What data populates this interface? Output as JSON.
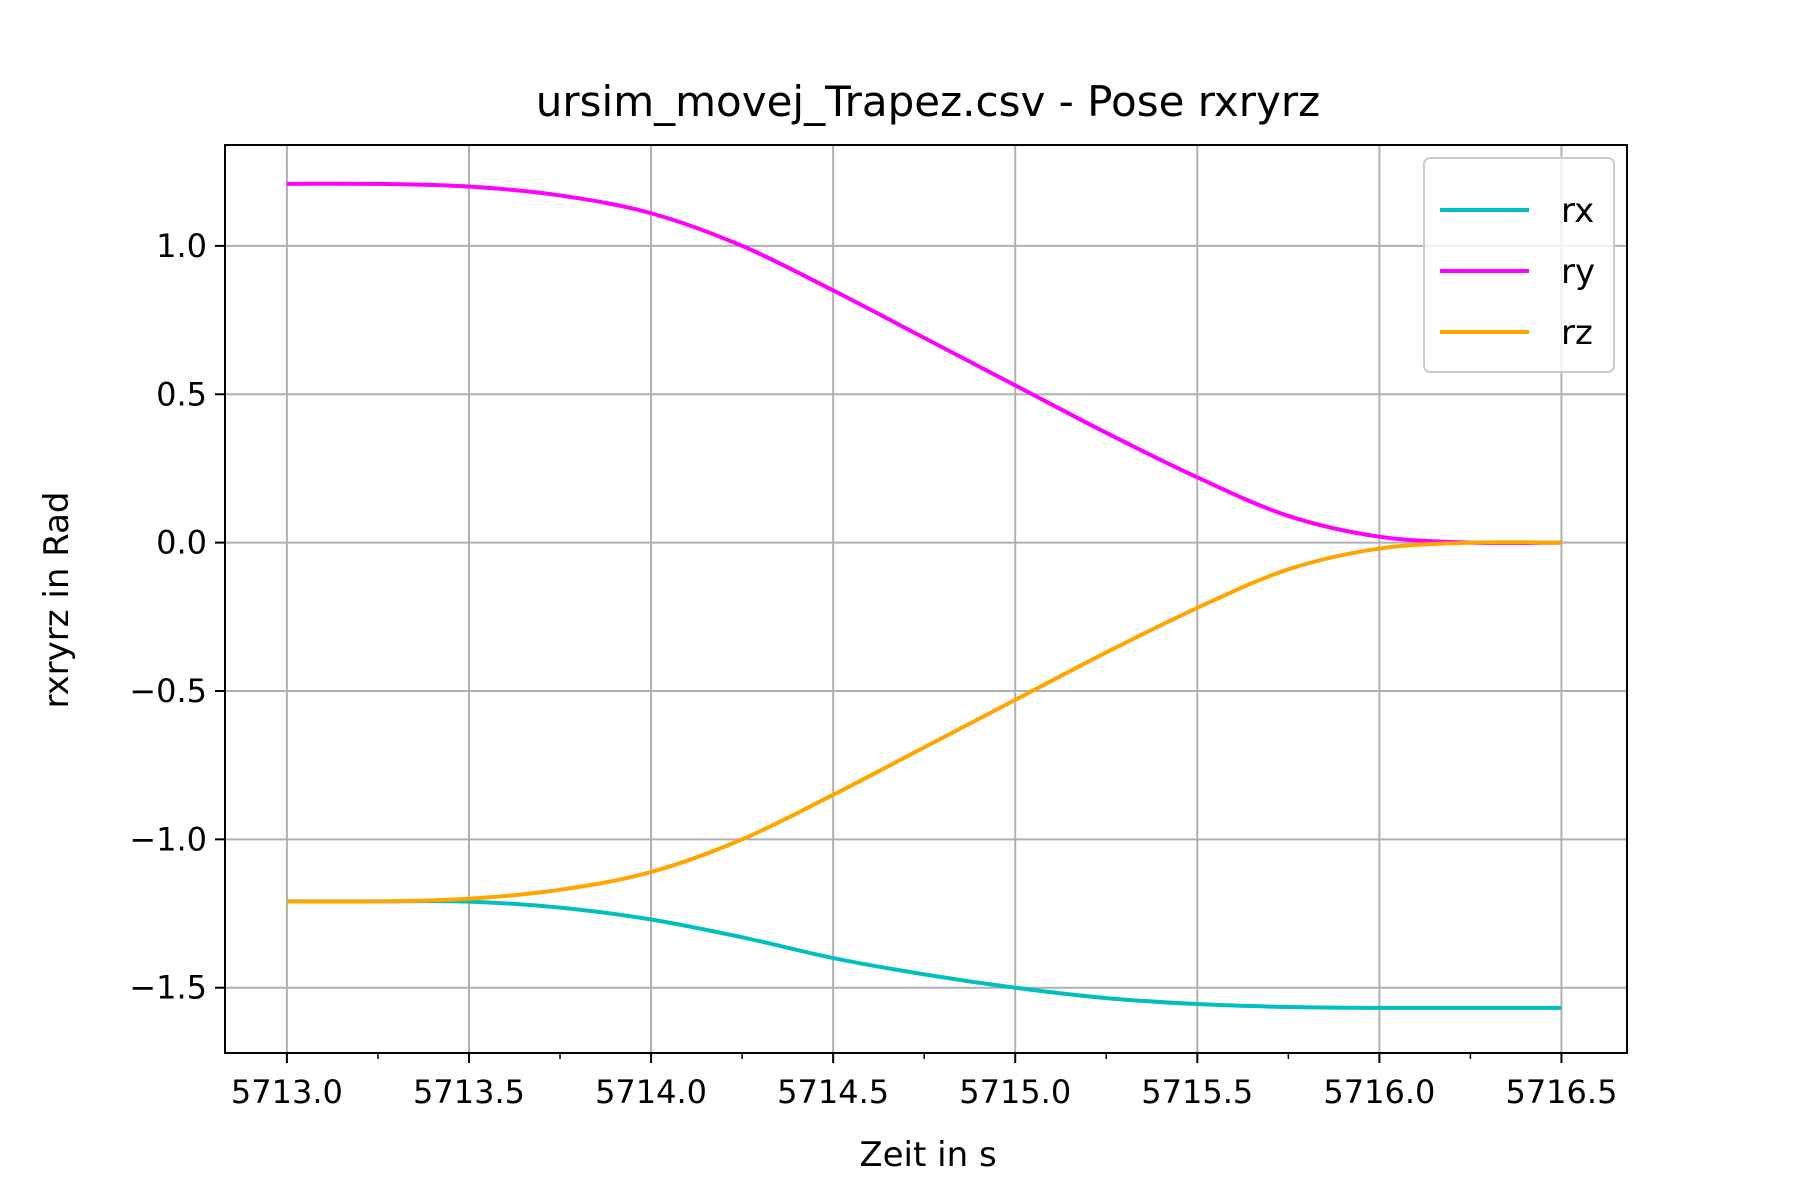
{
  "chart_data": {
    "type": "line",
    "title": "ursim_movej_Trapez.csv - Pose rxryrz",
    "xlabel": "Zeit in s",
    "ylabel": "rxryrz in Rad",
    "xlim": [
      5712.83,
      5716.68
    ],
    "ylim": [
      -1.72,
      1.34
    ],
    "xticks": [
      5713.0,
      5713.5,
      5714.0,
      5714.5,
      5715.0,
      5715.5,
      5716.0,
      5716.5
    ],
    "xtick_labels": [
      "5713.0",
      "5713.5",
      "5714.0",
      "5714.5",
      "5715.0",
      "5715.5",
      "5716.0",
      "5716.5"
    ],
    "x_minor_ticks": [
      5713.25,
      5713.75,
      5714.25,
      5714.75,
      5715.25,
      5715.75,
      5716.25
    ],
    "yticks": [
      1.0,
      0.5,
      0.0,
      -0.5,
      -1.0,
      -1.5
    ],
    "ytick_labels": [
      "1.0",
      "0.5",
      "0.0",
      "−0.5",
      "−1.0",
      "−1.5"
    ],
    "grid": true,
    "legend_position": "top-right",
    "x": [
      5713.0,
      5713.25,
      5713.5,
      5713.75,
      5714.0,
      5714.25,
      5714.5,
      5714.75,
      5715.0,
      5715.25,
      5715.5,
      5715.75,
      5716.0,
      5716.25,
      5716.5
    ],
    "series": [
      {
        "name": "rx",
        "color": "#00bfbf",
        "values": [
          -1.209,
          -1.209,
          -1.21,
          -1.23,
          -1.27,
          -1.33,
          -1.4,
          -1.455,
          -1.5,
          -1.535,
          -1.555,
          -1.565,
          -1.568,
          -1.568,
          -1.568
        ]
      },
      {
        "name": "ry",
        "color": "#ff00ff",
        "values": [
          1.209,
          1.209,
          1.2,
          1.17,
          1.11,
          1.0,
          0.85,
          0.69,
          0.53,
          0.37,
          0.22,
          0.09,
          0.02,
          0.0,
          0.0
        ]
      },
      {
        "name": "rz",
        "color": "#ffa500",
        "values": [
          -1.209,
          -1.209,
          -1.2,
          -1.17,
          -1.11,
          -1.0,
          -0.85,
          -0.69,
          -0.53,
          -0.37,
          -0.22,
          -0.09,
          -0.02,
          0.0,
          0.0
        ]
      }
    ]
  }
}
